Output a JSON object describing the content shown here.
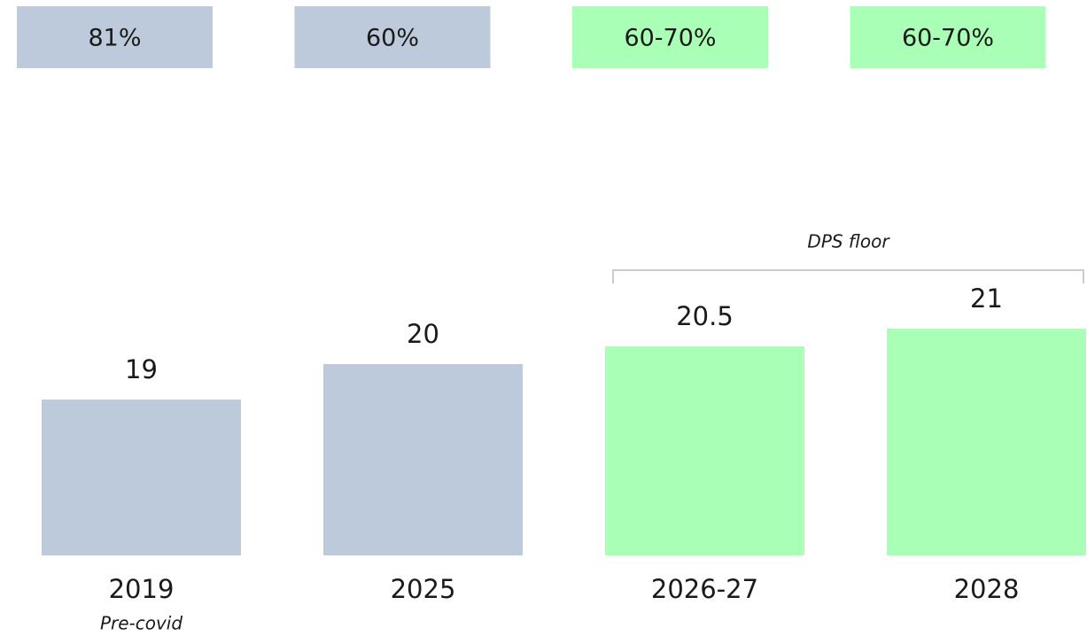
{
  "chart_data": {
    "type": "bar",
    "categories": [
      "2019",
      "2025",
      "2026-27",
      "2028"
    ],
    "values": [
      19,
      20,
      20.5,
      21
    ],
    "colors": [
      "#bccadb",
      "#bccadb",
      "#aaffb7",
      "#aaffb7"
    ],
    "payout_labels": [
      "81%",
      "60%",
      "60-70%",
      "60-70%"
    ],
    "ylim": [
      14.6,
      21.6
    ],
    "annotations": [
      {
        "text": "Pre-covid",
        "categories": [
          0
        ]
      },
      {
        "text": "DPS floor",
        "categories": [
          2,
          3
        ]
      }
    ]
  }
}
